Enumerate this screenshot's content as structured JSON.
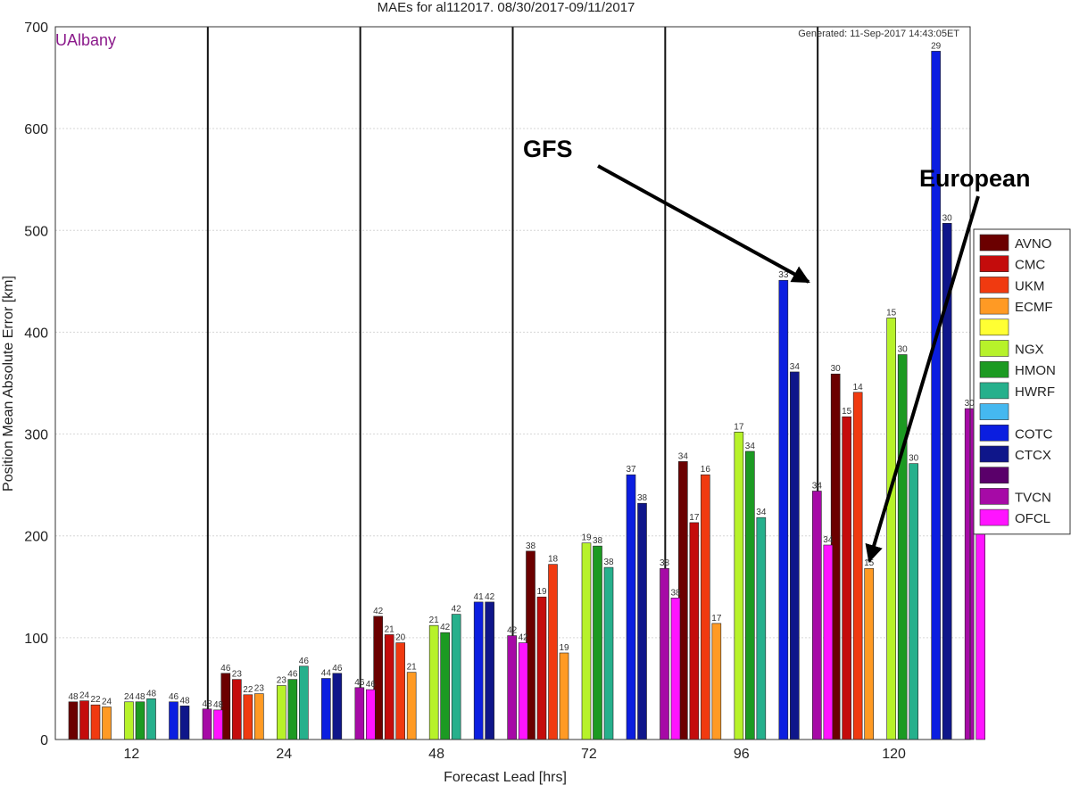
{
  "chart_data": {
    "type": "bar",
    "title": "MAEs for al112017. 08/30/2017-09/11/2017",
    "watermark": "UAlbany",
    "generated": "Generated: 11-Sep-2017 14:43:05ET",
    "xlabel": "Forecast Lead [hrs]",
    "ylabel": "Position Mean Absolute Error [km]",
    "ylim": [
      0,
      700
    ],
    "yticks": [
      0,
      100,
      200,
      300,
      400,
      500,
      600,
      700
    ],
    "grid": true,
    "legend_position": "right",
    "categories": [
      "12",
      "24",
      "48",
      "72",
      "96",
      "120"
    ],
    "series": [
      {
        "name": "AVNO",
        "color": "#6b0000",
        "values": [
          37,
          65,
          121,
          185,
          273,
          359
        ],
        "counts": [
          "48",
          "46",
          "42",
          "38",
          "34",
          "30"
        ]
      },
      {
        "name": "CMC",
        "color": "#c40c0c",
        "values": [
          38,
          59,
          103,
          140,
          213,
          317
        ],
        "counts": [
          "24",
          "23",
          "21",
          "19",
          "17",
          "15"
        ]
      },
      {
        "name": "UKM",
        "color": "#f03a10",
        "values": [
          34,
          44,
          95,
          172,
          260,
          341
        ],
        "counts": [
          "22",
          "22",
          "20",
          "18",
          "16",
          "14"
        ]
      },
      {
        "name": "ECMF",
        "color": "#ff9a24",
        "values": [
          32,
          45,
          66,
          85,
          114,
          168
        ],
        "counts": [
          "24",
          "23",
          "21",
          "19",
          "17",
          "15"
        ]
      },
      {
        "name": "",
        "color": "#ffff33",
        "values": [
          null,
          null,
          null,
          null,
          null,
          null
        ],
        "counts": [
          "",
          "",
          "",
          "",
          "",
          ""
        ]
      },
      {
        "name": "NGX",
        "color": "#b7f22a",
        "values": [
          37,
          53,
          112,
          193,
          302,
          414
        ],
        "counts": [
          "24",
          "23",
          "21",
          "19",
          "17",
          "15"
        ]
      },
      {
        "name": "HMON",
        "color": "#1c9a22",
        "values": [
          37,
          59,
          105,
          190,
          283,
          378
        ],
        "counts": [
          "48",
          "46",
          "42",
          "38",
          "34",
          "30"
        ]
      },
      {
        "name": "HWRF",
        "color": "#26b08c",
        "values": [
          40,
          72,
          123,
          169,
          218,
          271
        ],
        "counts": [
          "48",
          "46",
          "42",
          "38",
          "34",
          "30"
        ]
      },
      {
        "name": "",
        "color": "#45b8f0",
        "values": [
          null,
          null,
          null,
          null,
          null,
          null
        ],
        "counts": [
          "",
          "",
          "",
          "",
          "",
          ""
        ]
      },
      {
        "name": "COTC",
        "color": "#0b1ee0",
        "values": [
          37,
          60,
          135,
          260,
          451,
          676
        ],
        "counts": [
          "46",
          "44",
          "41",
          "37",
          "33",
          "29"
        ]
      },
      {
        "name": "CTCX",
        "color": "#0f168a",
        "values": [
          33,
          65,
          135,
          232,
          361,
          507
        ],
        "counts": [
          "48",
          "46",
          "42",
          "38",
          "34",
          "30"
        ]
      },
      {
        "name": "",
        "color": "#5a006a",
        "values": [
          null,
          null,
          null,
          null,
          null,
          null
        ],
        "counts": [
          "",
          "",
          "",
          "",
          "",
          ""
        ]
      },
      {
        "name": "TVCN",
        "color": "#a60aa6",
        "values": [
          30,
          51,
          102,
          168,
          244,
          325
        ],
        "counts": [
          "48",
          "46",
          "42",
          "38",
          "34",
          "30"
        ]
      },
      {
        "name": "OFCL",
        "color": "#ff14ff",
        "values": [
          29,
          49,
          95,
          139,
          191,
          247
        ],
        "counts": [
          "48",
          "46",
          "42",
          "38",
          "34",
          "30"
        ]
      }
    ],
    "annotations": [
      {
        "text": "GFS",
        "target": {
          "category": "120",
          "series": "AVNO"
        }
      },
      {
        "text": "European",
        "target": {
          "category": "120",
          "series": "ECMF"
        }
      }
    ]
  }
}
